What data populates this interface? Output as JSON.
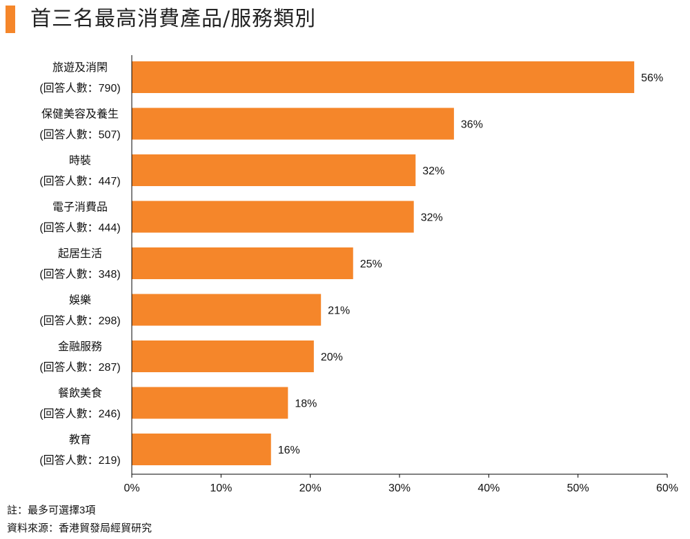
{
  "title": "首三名最高消費產品/服務類別",
  "colors": {
    "accent": "#f5862a",
    "bar": "#f5862a",
    "axis": "#000000"
  },
  "notes": {
    "note": "註：最多可選擇3項",
    "source": "資料來源：香港貿發局經貿研究"
  },
  "chart_data": {
    "type": "bar",
    "orientation": "horizontal",
    "title": "首三名最高消費產品/服務類別",
    "categories": [
      {
        "name": "旅遊及消閑",
        "responses": "(回答人數：790)"
      },
      {
        "name": "保健美容及養生",
        "responses": "(回答人數：507)"
      },
      {
        "name": "時裝",
        "responses": "(回答人數：447)"
      },
      {
        "name": "電子消費品",
        "responses": "(回答人數：444)"
      },
      {
        "name": "起居生活",
        "responses": "(回答人數：348)"
      },
      {
        "name": "娛樂",
        "responses": "(回答人數：298)"
      },
      {
        "name": "金融服務",
        "responses": "(回答人數：287)"
      },
      {
        "name": "餐飲美食",
        "responses": "(回答人數：246)"
      },
      {
        "name": "教育",
        "responses": "(回答人數：219)"
      }
    ],
    "values": [
      56.3,
      36.1,
      31.8,
      31.6,
      24.8,
      21.2,
      20.4,
      17.5,
      15.6
    ],
    "value_labels": [
      "56%",
      "36%",
      "32%",
      "32%",
      "25%",
      "21%",
      "20%",
      "18%",
      "16%"
    ],
    "xlim": [
      0,
      60
    ],
    "xticks": [
      "0%",
      "10%",
      "20%",
      "30%",
      "40%",
      "50%",
      "60%"
    ],
    "xlabel": "",
    "ylabel": "",
    "grid": false,
    "legend": "none"
  }
}
